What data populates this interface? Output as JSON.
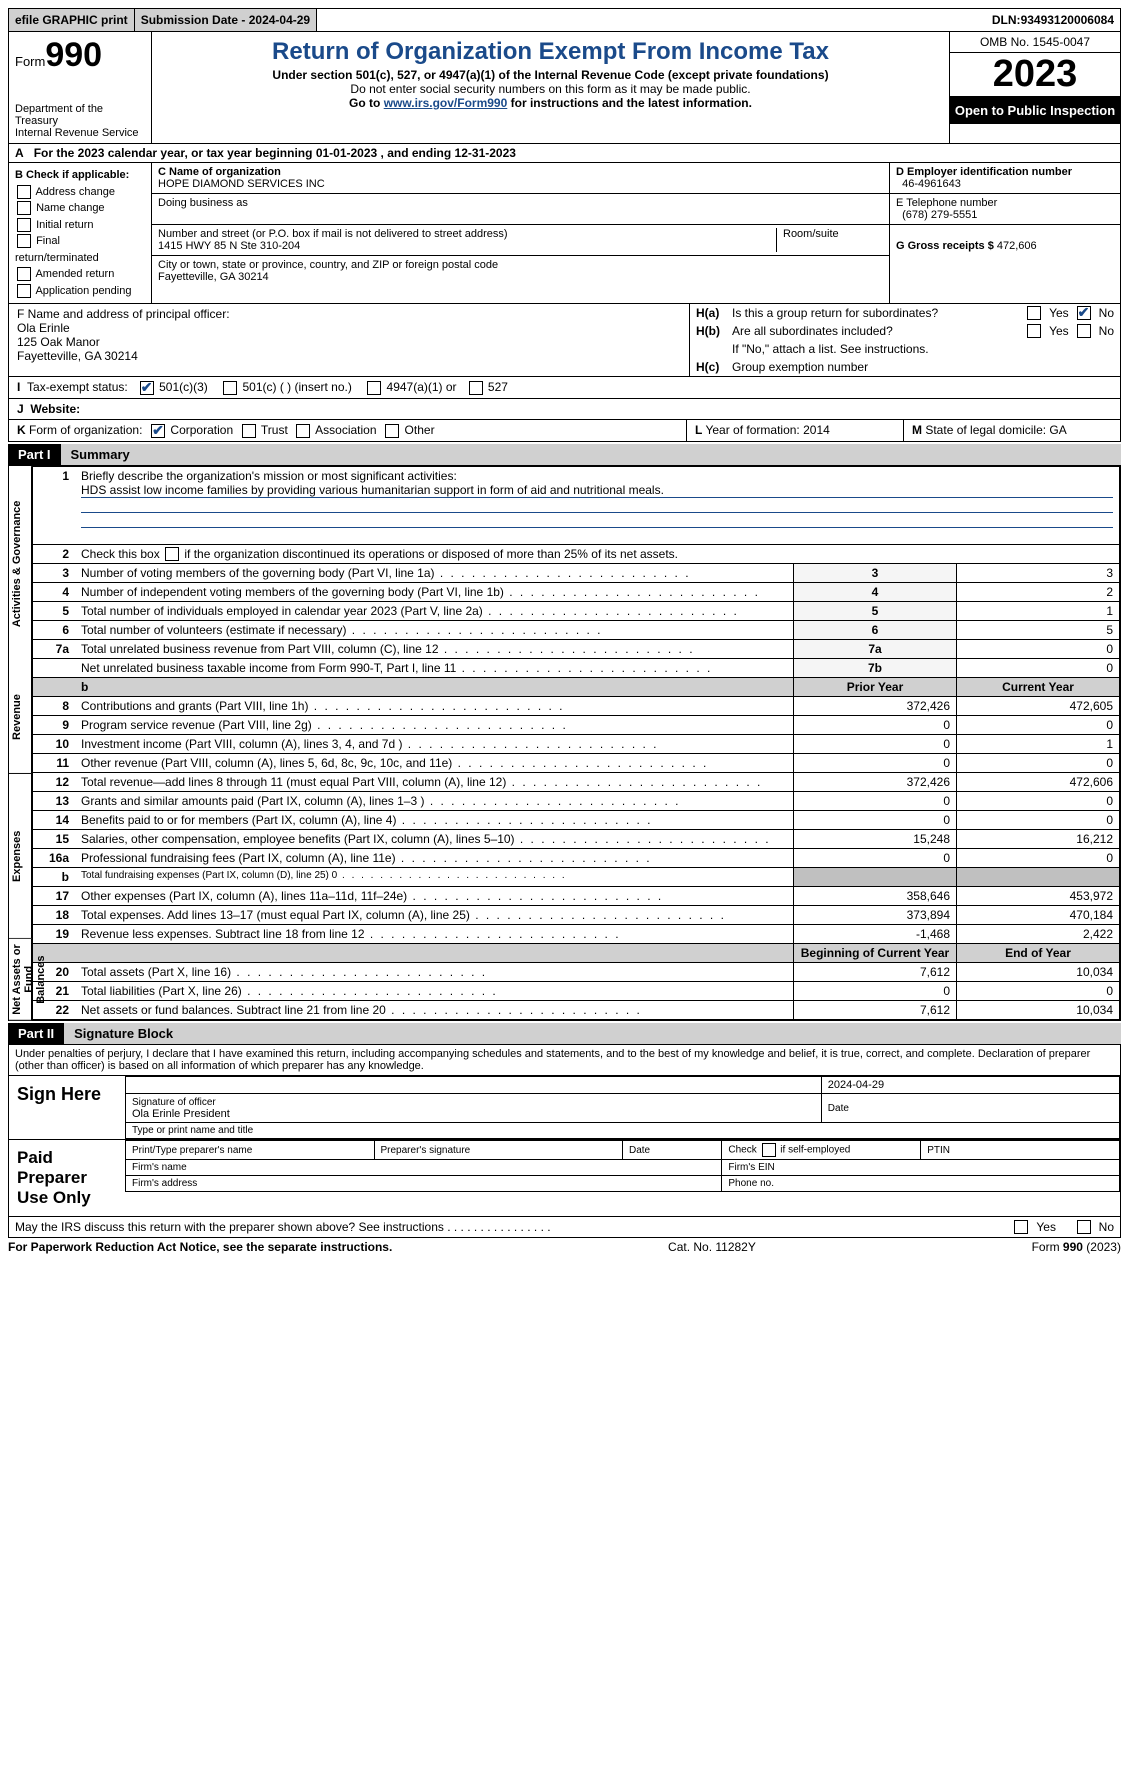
{
  "topbar": {
    "efile": "efile GRAPHIC print",
    "submission_label": "Submission Date - ",
    "submission_date": "2024-04-29",
    "dln_label": "DLN: ",
    "dln": "93493120006084"
  },
  "header": {
    "form_prefix": "Form",
    "form_number": "990",
    "title": "Return of Organization Exempt From Income Tax",
    "sub1": "Under section 501(c), 527, or 4947(a)(1) of the Internal Revenue Code (except private foundations)",
    "sub2": "Do not enter social security numbers on this form as it may be made public.",
    "sub3_pre": "Go to ",
    "sub3_link": "www.irs.gov/Form990",
    "sub3_post": " for instructions and the latest information.",
    "dept": "Department of the Treasury",
    "irs": "Internal Revenue Service",
    "omb": "OMB No. 1545-0047",
    "year": "2023",
    "open": "Open to Public Inspection"
  },
  "row_a": {
    "label_a": "A",
    "text_pre": "For the 2023 calendar year, or tax year beginning ",
    "begin": "01-01-2023",
    "text_mid": ", and ending ",
    "end": "12-31-2023"
  },
  "col_b": {
    "header": "B Check if applicable:",
    "items": [
      "Address change",
      "Name change",
      "Initial return",
      "Final return/terminated",
      "Amended return",
      "Application pending"
    ]
  },
  "col_c": {
    "name_label": "C Name of organization",
    "name": "HOPE DIAMOND SERVICES INC",
    "dba_label": "Doing business as",
    "addr_label": "Number and street (or P.O. box if mail is not delivered to street address)",
    "addr": "1415 HWY 85 N Ste 310-204",
    "room_label": "Room/suite",
    "city_label": "City or town, state or province, country, and ZIP or foreign postal code",
    "city": "Fayetteville, GA  30214"
  },
  "col_de": {
    "d_label": "D Employer identification number",
    "d_val": "46-4961643",
    "e_label": "E Telephone number",
    "e_val": "(678) 279-5551",
    "g_label": "G Gross receipts $ ",
    "g_val": "472,606"
  },
  "row_f": {
    "f_label": "F  Name and address of principal officer:",
    "f_name": "Ola Erinle",
    "f_addr1": "125 Oak Manor",
    "f_addr2": "Fayetteville, GA  30214",
    "ha_label": "H(a)",
    "ha_text": "Is this a group return for subordinates?",
    "hb_label": "H(b)",
    "hb_text": "Are all subordinates included?",
    "hb_note": "If \"No,\" attach a list. See instructions.",
    "hc_label": "H(c)",
    "hc_text": "Group exemption number",
    "yes": "Yes",
    "no": "No"
  },
  "row_i": {
    "label": "I",
    "text": "Tax-exempt status:",
    "opts": [
      "501(c)(3)",
      "501(c) (  ) (insert no.)",
      "4947(a)(1) or",
      "527"
    ]
  },
  "row_j": {
    "label": "J",
    "text": "Website:"
  },
  "row_k": {
    "label": "K",
    "text": "Form of organization:",
    "opts": [
      "Corporation",
      "Trust",
      "Association",
      "Other"
    ],
    "l_label": "L",
    "l_text": "Year of formation: ",
    "l_val": "2014",
    "m_label": "M",
    "m_text": "State of legal domicile: ",
    "m_val": "GA"
  },
  "part1": {
    "label": "Part I",
    "title": "Summary"
  },
  "summary": {
    "q1": "Briefly describe the organization's mission or most significant activities:",
    "q1a": "HDS assist low income families by providing various humanitarian support in form of aid and nutritional meals.",
    "q2": "Check this box       if the organization discontinued its operations or disposed of more than 25% of its net assets.",
    "tabs": {
      "gov": "Activities & Governance",
      "rev": "Revenue",
      "exp": "Expenses",
      "net": "Net Assets or Fund Balances"
    },
    "lines_gov": [
      {
        "n": "3",
        "d": "Number of voting members of the governing body (Part VI, line 1a)",
        "ln": "3",
        "v": "3"
      },
      {
        "n": "4",
        "d": "Number of independent voting members of the governing body (Part VI, line 1b)",
        "ln": "4",
        "v": "2"
      },
      {
        "n": "5",
        "d": "Total number of individuals employed in calendar year 2023 (Part V, line 2a)",
        "ln": "5",
        "v": "1"
      },
      {
        "n": "6",
        "d": "Total number of volunteers (estimate if necessary)",
        "ln": "6",
        "v": "5"
      },
      {
        "n": "7a",
        "d": "Total unrelated business revenue from Part VIII, column (C), line 12",
        "ln": "7a",
        "v": "0"
      },
      {
        "n": "",
        "d": "Net unrelated business taxable income from Form 990-T, Part I, line 11",
        "ln": "7b",
        "v": "0"
      }
    ],
    "col_hdr_b": "b",
    "col_hdr_prior": "Prior Year",
    "col_hdr_current": "Current Year",
    "lines_rev": [
      {
        "n": "8",
        "d": "Contributions and grants (Part VIII, line 1h)",
        "p": "372,426",
        "c": "472,605"
      },
      {
        "n": "9",
        "d": "Program service revenue (Part VIII, line 2g)",
        "p": "0",
        "c": "0"
      },
      {
        "n": "10",
        "d": "Investment income (Part VIII, column (A), lines 3, 4, and 7d )",
        "p": "0",
        "c": "1"
      },
      {
        "n": "11",
        "d": "Other revenue (Part VIII, column (A), lines 5, 6d, 8c, 9c, 10c, and 11e)",
        "p": "0",
        "c": "0"
      },
      {
        "n": "12",
        "d": "Total revenue—add lines 8 through 11 (must equal Part VIII, column (A), line 12)",
        "p": "372,426",
        "c": "472,606"
      }
    ],
    "lines_exp": [
      {
        "n": "13",
        "d": "Grants and similar amounts paid (Part IX, column (A), lines 1–3 )",
        "p": "0",
        "c": "0"
      },
      {
        "n": "14",
        "d": "Benefits paid to or for members (Part IX, column (A), line 4)",
        "p": "0",
        "c": "0"
      },
      {
        "n": "15",
        "d": "Salaries, other compensation, employee benefits (Part IX, column (A), lines 5–10)",
        "p": "15,248",
        "c": "16,212"
      },
      {
        "n": "16a",
        "d": "Professional fundraising fees (Part IX, column (A), line 11e)",
        "p": "0",
        "c": "0"
      },
      {
        "n": "b",
        "d": "Total fundraising expenses (Part IX, column (D), line 25) 0",
        "p": "",
        "c": "",
        "shade": true,
        "small": true
      },
      {
        "n": "17",
        "d": "Other expenses (Part IX, column (A), lines 11a–11d, 11f–24e)",
        "p": "358,646",
        "c": "453,972"
      },
      {
        "n": "18",
        "d": "Total expenses. Add lines 13–17 (must equal Part IX, column (A), line 25)",
        "p": "373,894",
        "c": "470,184"
      },
      {
        "n": "19",
        "d": "Revenue less expenses. Subtract line 18 from line 12",
        "p": "-1,468",
        "c": "2,422"
      }
    ],
    "col_hdr_begin": "Beginning of Current Year",
    "col_hdr_end": "End of Year",
    "lines_net": [
      {
        "n": "20",
        "d": "Total assets (Part X, line 16)",
        "p": "7,612",
        "c": "10,034"
      },
      {
        "n": "21",
        "d": "Total liabilities (Part X, line 26)",
        "p": "0",
        "c": "0"
      },
      {
        "n": "22",
        "d": "Net assets or fund balances. Subtract line 21 from line 20",
        "p": "7,612",
        "c": "10,034"
      }
    ]
  },
  "part2": {
    "label": "Part II",
    "title": "Signature Block"
  },
  "sig": {
    "perjury": "Under penalties of perjury, I declare that I have examined this return, including accompanying schedules and statements, and to the best of my knowledge and belief, it is true, correct, and complete. Declaration of preparer (other than officer) is based on all information of which preparer has any knowledge.",
    "sign_here": "Sign Here",
    "sig_officer": "Signature of officer",
    "sig_date": "2024-04-29",
    "sig_name": "Ola Erinle President",
    "type_name": "Type or print name and title",
    "date": "Date",
    "paid": "Paid Preparer Use Only",
    "prep_name": "Print/Type preparer's name",
    "prep_sig": "Preparer's signature",
    "prep_date": "Date",
    "prep_self": "Check        if self-employed",
    "ptin": "PTIN",
    "firm_name": "Firm's name",
    "firm_ein": "Firm's EIN",
    "firm_addr": "Firm's address",
    "phone": "Phone no.",
    "discuss": "May the IRS discuss this return with the preparer shown above? See instructions  .   .   .   .   .   .   .   .   .   .   .   .   .   .   .   .",
    "yes": "Yes",
    "no": "No"
  },
  "footer": {
    "left": "For Paperwork Reduction Act Notice, see the separate instructions.",
    "mid": "Cat. No. 11282Y",
    "right_pre": "Form ",
    "right_form": "990",
    "right_post": " (2023)"
  }
}
